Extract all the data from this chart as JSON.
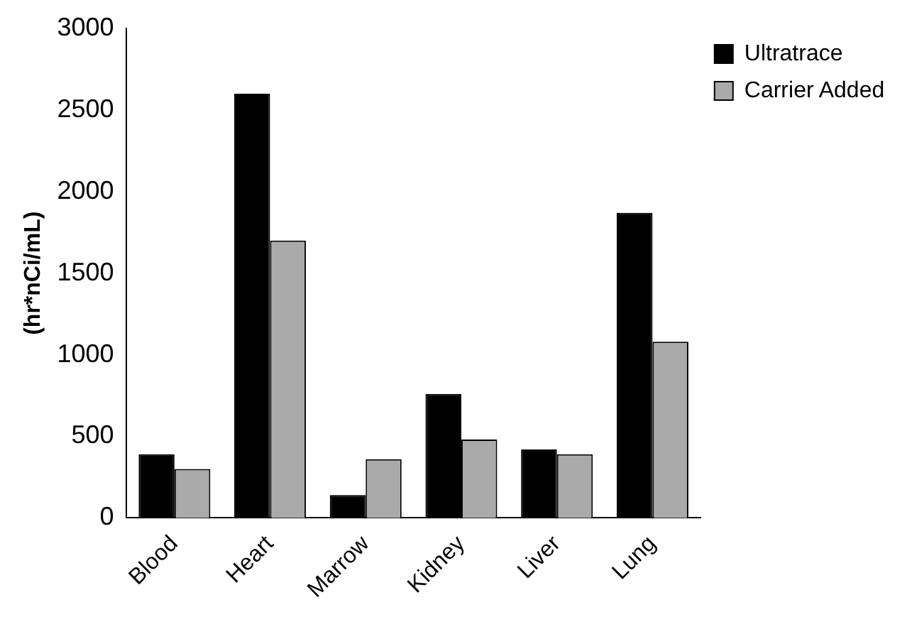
{
  "chart_data": {
    "type": "bar",
    "ylabel": "(hr*nCi/mL)",
    "categories": [
      "Blood",
      "Heart",
      "Marrow",
      "Kidney",
      "Liver",
      "Lung"
    ],
    "series": [
      {
        "name": "Ultratrace",
        "color": "#000000",
        "values": [
          390,
          2600,
          140,
          760,
          420,
          1870
        ]
      },
      {
        "name": "Carrier Added",
        "color": "#aaaaaa",
        "values": [
          300,
          1700,
          360,
          480,
          390,
          1080
        ]
      }
    ],
    "ylim": [
      0,
      3000
    ],
    "yticks": [
      0,
      500,
      1000,
      1500,
      2000,
      2500,
      3000
    ],
    "grid": false,
    "legend": "top right"
  }
}
